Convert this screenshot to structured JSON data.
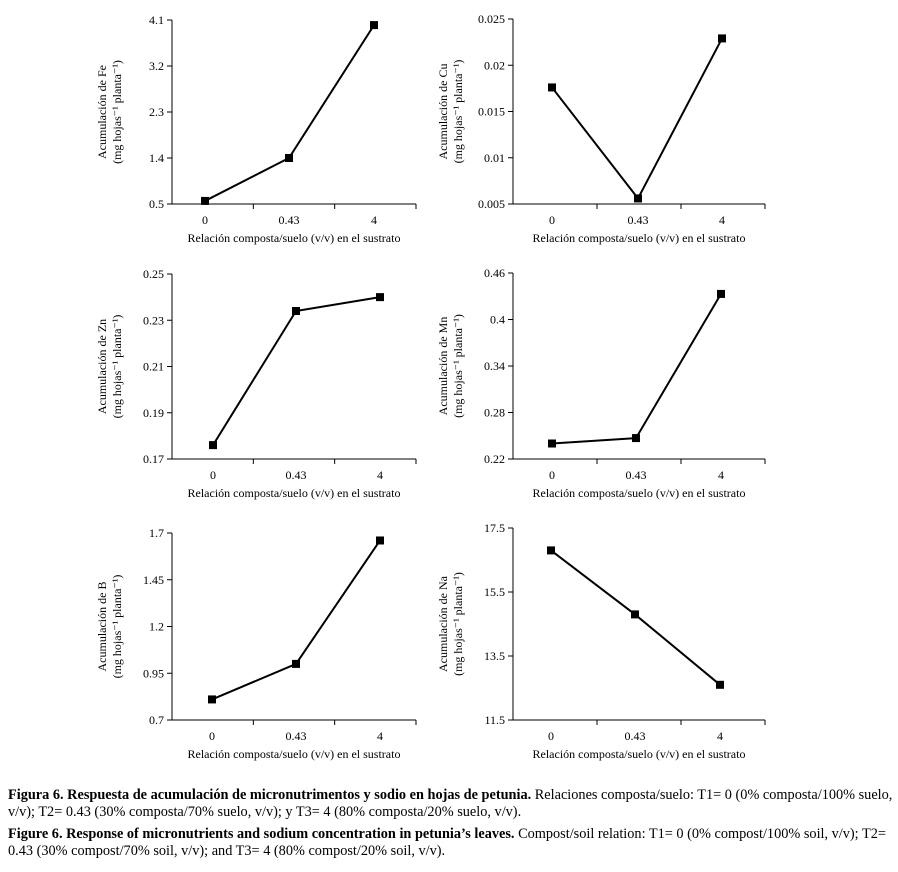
{
  "chart_data": [
    {
      "type": "line",
      "ylabel_line1": "Acumulación de Fe",
      "ylabel_line2": "(mg hojas⁻¹ planta⁻¹)",
      "xlabel": "Relación composta/suelo (v/v) en el sustrato",
      "categories": [
        "0",
        "0.43",
        "4"
      ],
      "values": [
        0.56,
        1.4,
        4.0
      ],
      "ylim": [
        0.5,
        4.1
      ],
      "yticks": [
        "0.5",
        "1.4",
        "2.3",
        "3.2",
        "4.1"
      ]
    },
    {
      "type": "line",
      "ylabel_line1": "Acumulación de Cu",
      "ylabel_line2": "(mg hojas⁻¹ planta⁻¹)",
      "xlabel": "Relación composta/suelo (v/v) en el sustrato",
      "categories": [
        "0",
        "0.43",
        "4"
      ],
      "values": [
        0.0176,
        0.0056,
        0.0229
      ],
      "ylim": [
        0.005,
        0.025
      ],
      "yticks": [
        "0.005",
        "0.01",
        "0.015",
        "0.02",
        "0.025"
      ]
    },
    {
      "type": "line",
      "ylabel_line1": "Acumulación de Zn",
      "ylabel_line2": "(mg hojas⁻¹ planta⁻¹)",
      "xlabel": "Relación composta/suelo (v/v) en el sustrato",
      "categories": [
        "0",
        "0.43",
        "4"
      ],
      "values": [
        0.176,
        0.234,
        0.24
      ],
      "ylim": [
        0.17,
        0.25
      ],
      "yticks": [
        "0.17",
        "0.19",
        "0.21",
        "0.23",
        "0.25"
      ]
    },
    {
      "type": "line",
      "ylabel_line1": "Acumulación de Mn",
      "ylabel_line2": "(mg hojas⁻¹ planta⁻¹)",
      "xlabel": "Relación composta/suelo (v/v) en el sustrato",
      "categories": [
        "0",
        "0.43",
        "4"
      ],
      "values": [
        0.24,
        0.247,
        0.433
      ],
      "ylim": [
        0.22,
        0.46
      ],
      "yticks": [
        "0.22",
        "0.28",
        "0.34",
        "0.4",
        "0.46"
      ]
    },
    {
      "type": "line",
      "ylabel_line1": "Acumulación de B",
      "ylabel_line2": "(mg hojas⁻¹ planta⁻¹)",
      "xlabel": "Relación composta/suelo (v/v) en el sustrato",
      "categories": [
        "0",
        "0.43",
        "4"
      ],
      "values": [
        0.81,
        1.0,
        1.66
      ],
      "ylim": [
        0.7,
        1.7
      ],
      "yticks": [
        "0.7",
        "0.95",
        "1.2",
        "1.45",
        "1.7"
      ]
    },
    {
      "type": "line",
      "ylabel_line1": "Acumulación de Na",
      "ylabel_line2": "(mg hojas⁻¹ planta⁻¹)",
      "xlabel": "Relación composta/suelo (v/v) en el sustrato",
      "categories": [
        "0",
        "0.43",
        "4"
      ],
      "values": [
        16.8,
        14.8,
        12.6
      ],
      "ylim": [
        11.5,
        17.5
      ],
      "yticks": [
        "11.5",
        "13.5",
        "15.5",
        "17.5"
      ]
    }
  ],
  "caption_es": {
    "bold": "Figura 6. Respuesta de acumulación de micronutrimentos y sodio en hojas de petunia.",
    "text": " Relaciones composta/suelo: T1= 0 (0% composta/100% suelo, v/v); T2= 0.43 (30% composta/70% suelo, v/v); y T3= 4 (80% composta/20% suelo, v/v)."
  },
  "caption_en": {
    "bold": "Figure 6. Response of micronutrients and sodium concentration in petunia’s leaves.",
    "text": " Compost/soil relation: T1= 0 (0% compost/100% soil, v/v); T2= 0.43 (30% compost/70% soil, v/v); and T3= 4 (80% compost/20% soil, v/v)."
  }
}
